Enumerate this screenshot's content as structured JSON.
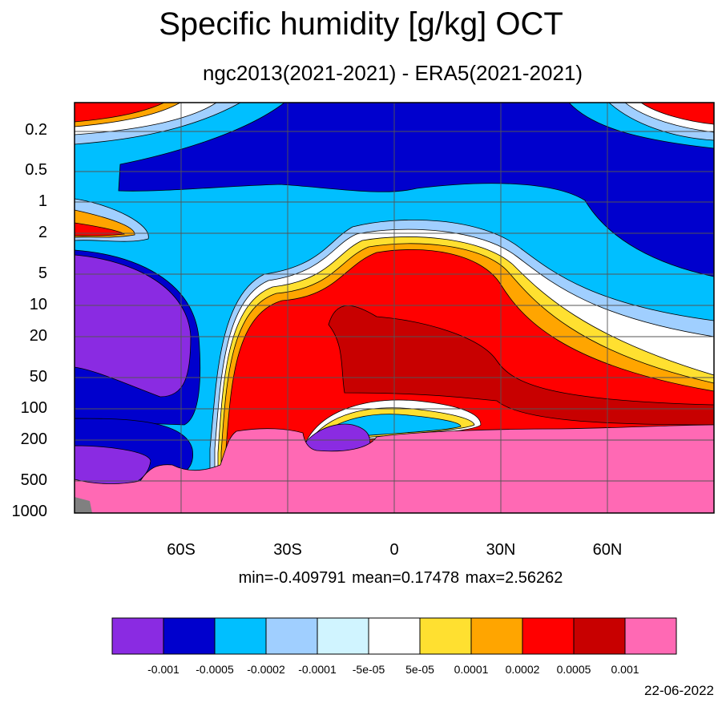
{
  "chart_data": {
    "type": "heatmap",
    "title": "Specific humidity [g/kg] OCT",
    "subtitle": "ngc2013(2021-2021) - ERA5(2021-2021)",
    "y_ticks": [
      "0.2",
      "0.5",
      "1",
      "2",
      "5",
      "10",
      "20",
      "50",
      "100",
      "200",
      "500",
      "1000"
    ],
    "y_tick_values": [
      0.2,
      0.5,
      1,
      2,
      5,
      10,
      20,
      50,
      100,
      200,
      500,
      1000
    ],
    "y_scale": "log",
    "y_range": [
      0.1,
      1000
    ],
    "x_ticks": [
      "60S",
      "30S",
      "0",
      "30N",
      "60N"
    ],
    "x_tick_values": [
      -60,
      -30,
      0,
      30,
      60
    ],
    "x_range": [
      -90,
      90
    ],
    "stats": {
      "text": "min=-0.409791   mean=0.17478   max=2.56262"
    },
    "colorbar": {
      "colors": [
        "#8a2be2",
        "#0000cd",
        "#00bfff",
        "#a0cfff",
        "#d0f4ff",
        "#ffffff",
        "#ffe030",
        "#ffa500",
        "#ff0000",
        "#c80000",
        "#ff69b4"
      ],
      "labels": [
        "-0.001",
        "-0.0005",
        "-0.0002",
        "-0.0001",
        "-5e-05",
        "5e-05",
        "0.0001",
        "0.0002",
        "0.0005",
        "0.001"
      ]
    },
    "date_stamp": "22-06-2022"
  }
}
